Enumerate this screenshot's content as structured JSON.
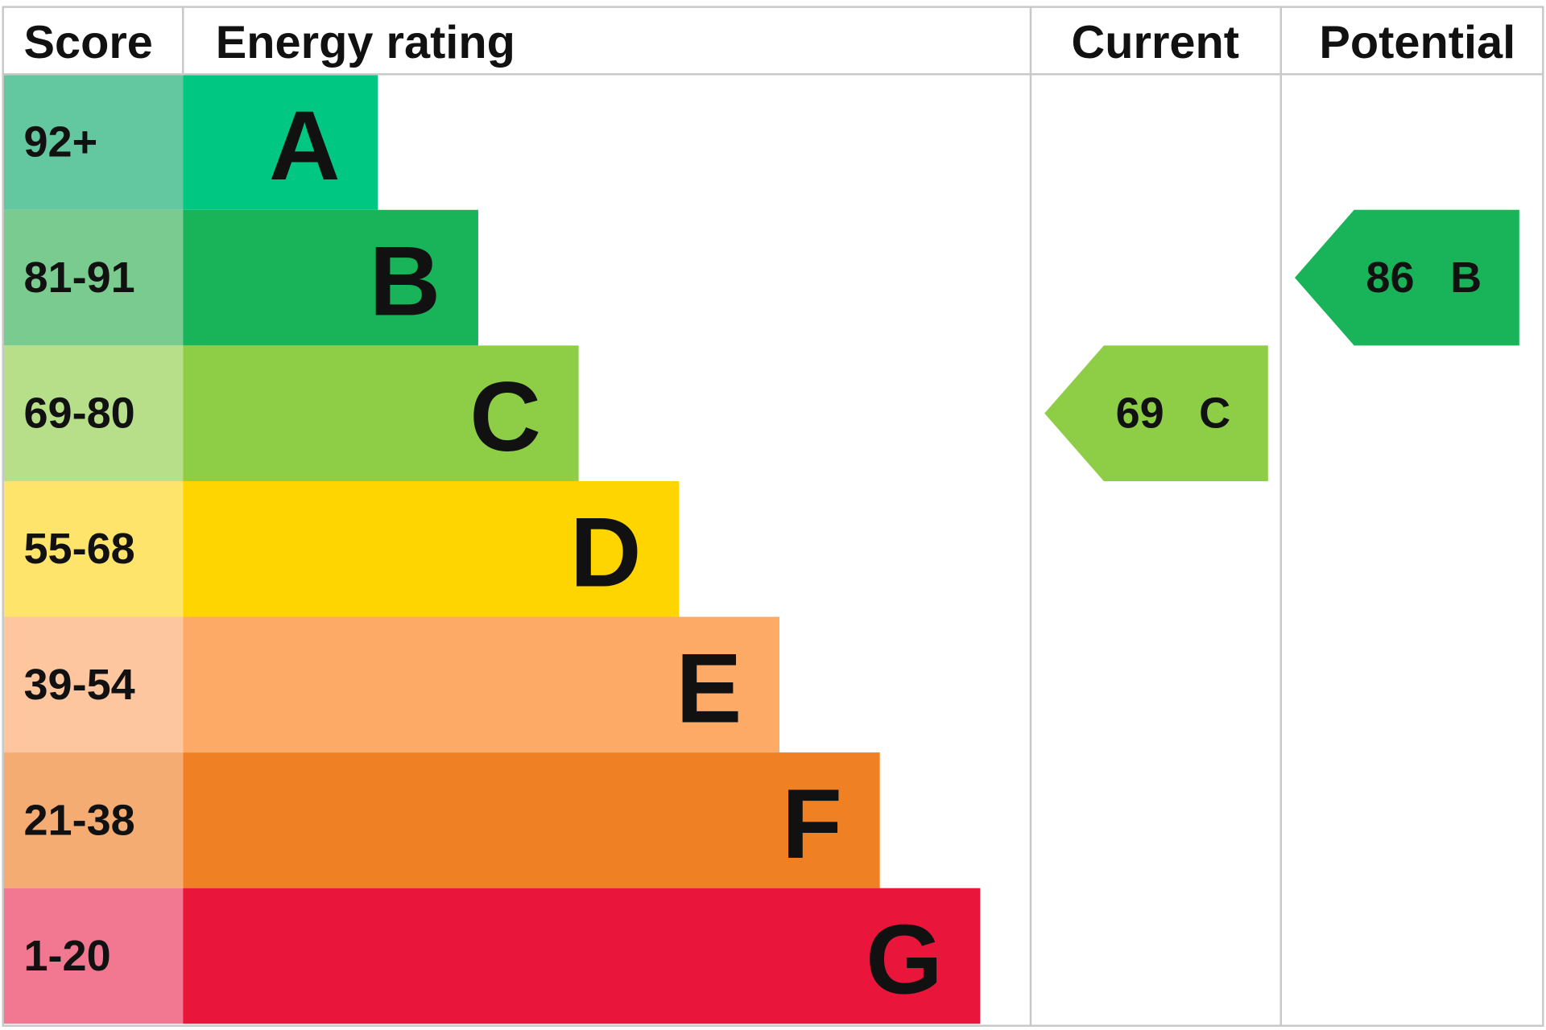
{
  "header": {
    "score": "Score",
    "energy_rating": "Energy rating",
    "current": "Current",
    "potential": "Potential"
  },
  "rows": [
    {
      "score": "92+",
      "rating": "A",
      "color": "#00c781",
      "score_color": "#63c7a0"
    },
    {
      "score": "81-91",
      "rating": "B",
      "color": "#19b459",
      "score_color": "#7acb8f"
    },
    {
      "score": "69-80",
      "rating": "C",
      "color": "#8dce46",
      "score_color": "#b7df8a"
    },
    {
      "score": "55-68",
      "rating": "D",
      "color": "#ffd500",
      "score_color": "#ffe46c"
    },
    {
      "score": "39-54",
      "rating": "E",
      "color": "#fcaa65",
      "score_color": "#fdc69e"
    },
    {
      "score": "21-38",
      "rating": "F",
      "color": "#ef8023",
      "score_color": "#f4ac72"
    },
    {
      "score": "1-20",
      "rating": "G",
      "color": "#e9153b",
      "score_color": "#f27790"
    }
  ],
  "current": {
    "score": "69",
    "rating": "C"
  },
  "potential": {
    "score": "86",
    "rating": "B"
  }
}
